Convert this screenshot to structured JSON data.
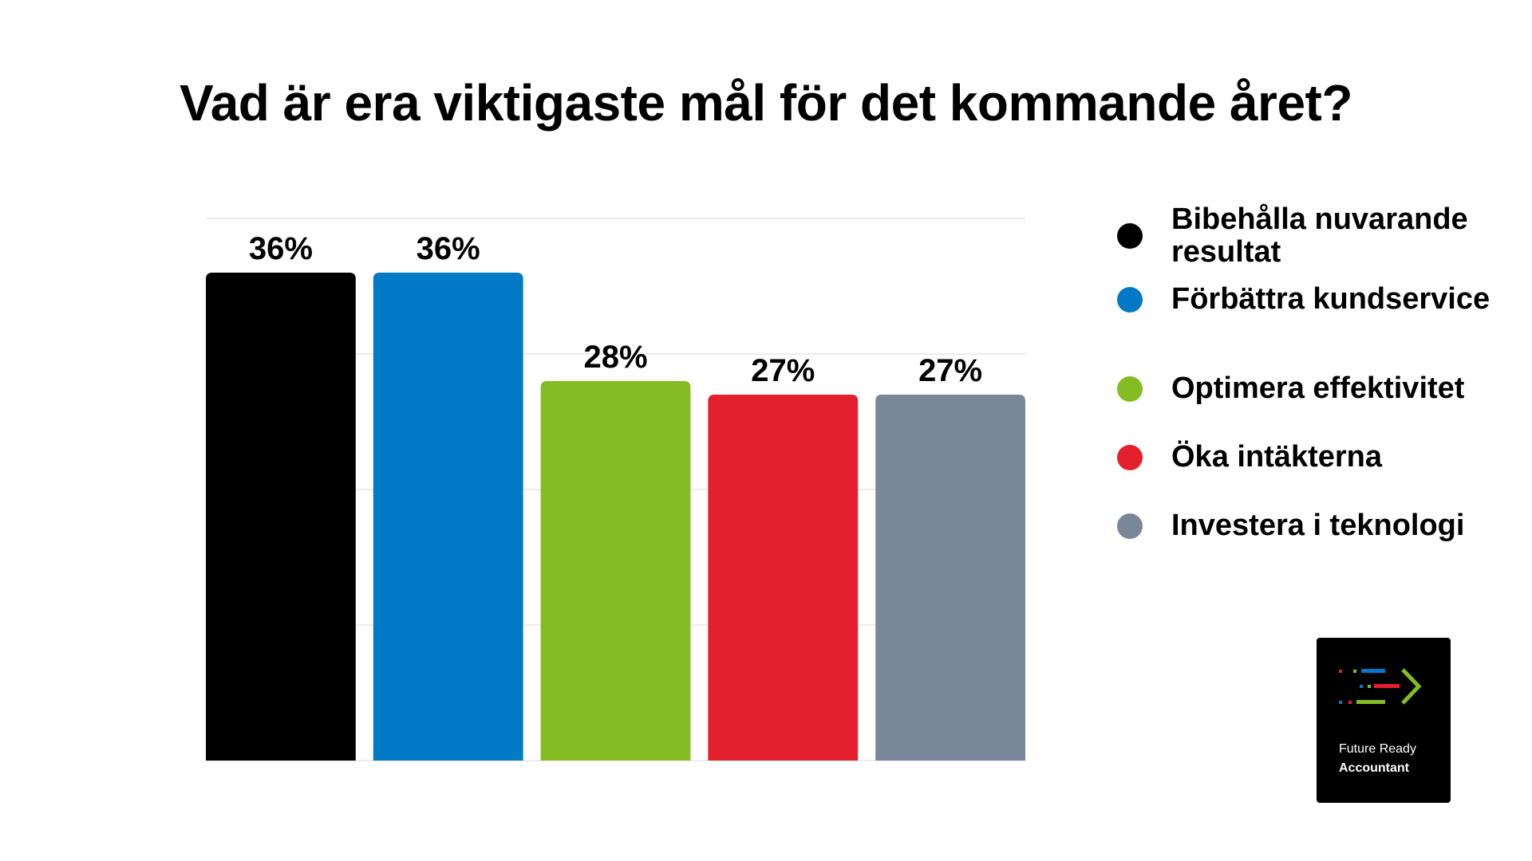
{
  "chart_data": {
    "type": "bar",
    "title": "Vad är era viktigaste mål för det kommande året?",
    "categories": [
      "Bibehålla nuvarande resultat",
      "Förbättra kundservice",
      "Optimera effektivitet",
      "Öka intäkterna",
      "Investera i teknologi"
    ],
    "values": [
      36,
      36,
      28,
      27,
      27
    ],
    "value_labels": [
      "36%",
      "36%",
      "28%",
      "27%",
      "27%"
    ],
    "colors": [
      "#000000",
      "#0179c5",
      "#84bc22",
      "#e3202e",
      "#7a8798"
    ],
    "ylim": [
      0,
      40
    ],
    "grid": true,
    "xlabel": "",
    "ylabel": "",
    "legend_position": "right"
  },
  "legend": {
    "items": [
      {
        "label": "Bibehålla nuvarande resultat",
        "color": "#000000"
      },
      {
        "label": "Förbättra kundservice",
        "color": "#0179c5"
      },
      {
        "label": "Optimera effektivitet",
        "color": "#84bc22"
      },
      {
        "label": "Öka intäkterna",
        "color": "#e3202e"
      },
      {
        "label": "Investera i teknologi",
        "color": "#7a8798"
      }
    ]
  },
  "logo": {
    "line1": "Future Ready",
    "line2": "Accountant",
    "icon": "arrow-lines-icon"
  }
}
